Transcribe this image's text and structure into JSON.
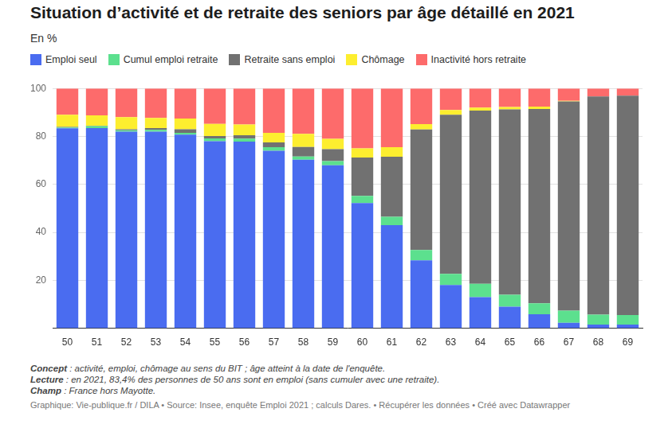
{
  "chart_data": {
    "type": "bar",
    "title": "Situation d’activité et de retraite des seniors par âge détaillé en 2021",
    "subtitle": "En %",
    "categories": [
      "50",
      "51",
      "52",
      "53",
      "54",
      "55",
      "56",
      "57",
      "58",
      "59",
      "60",
      "61",
      "62",
      "63",
      "64",
      "65",
      "66",
      "67",
      "68",
      "69"
    ],
    "series": [
      {
        "name": "Emploi seul",
        "color": "#4a6cf0",
        "values": [
          83.4,
          83.5,
          82,
          82,
          80.7,
          78,
          77.8,
          74,
          70.3,
          68,
          52.2,
          43,
          28.3,
          18,
          13,
          9,
          5.8,
          2.3,
          1.5,
          1.5
        ]
      },
      {
        "name": "Cumul emploi retraite",
        "color": "#5ce08e",
        "values": [
          0.3,
          0.8,
          0.6,
          0.7,
          0.8,
          1.2,
          1.3,
          1.5,
          1.3,
          1.7,
          3,
          3.5,
          4.3,
          4.7,
          5.5,
          5,
          4.6,
          5,
          4.2,
          4
        ]
      },
      {
        "name": "Retraite sans emploi",
        "color": "#717171",
        "values": [
          0.3,
          0.2,
          0.4,
          0.8,
          1.5,
          1,
          1.4,
          2,
          4,
          5,
          16,
          25,
          50.3,
          66.3,
          72.3,
          77.3,
          81,
          87.3,
          91,
          91.5
        ]
      },
      {
        "name": "Chômage",
        "color": "#fdee2f",
        "values": [
          5,
          4.3,
          5,
          4.2,
          4.5,
          5,
          4.5,
          4,
          5.5,
          4.3,
          3.8,
          4,
          2.2,
          2,
          1.2,
          1,
          1,
          0.2,
          0,
          0
        ]
      },
      {
        "name": "Inactivité hors retraite",
        "color": "#fd6b6b",
        "values": [
          11,
          11.2,
          12,
          12.3,
          12.5,
          14.8,
          15,
          18.5,
          18.9,
          21,
          25,
          24.5,
          14.9,
          9,
          8,
          7.7,
          7.6,
          5.2,
          3.3,
          3
        ]
      }
    ],
    "stacked": true,
    "ylim": [
      0,
      100
    ],
    "yticks": [
      20,
      40,
      60,
      80,
      100
    ],
    "grid": true,
    "legend": "top-left",
    "data_labels": false,
    "notes": [
      {
        "label": "Concept",
        "text": " : activité, emploi, chômage au sens du BIT ; âge atteint à la date de l'enquête."
      },
      {
        "label": "Lecture",
        "text": " : en 2021, 83,4% des personnes de 50 ans sont en emploi (sans cumuler avec une retraite)."
      },
      {
        "label": "Champ",
        "text": " : France hors Mayotte."
      }
    ],
    "footer": "Graphique: Vie-publique.fr / DILA • Source: Insee, enquête Emploi 2021 ; calculs Dares. • Récupérer les données • Créé avec Datawrapper"
  }
}
